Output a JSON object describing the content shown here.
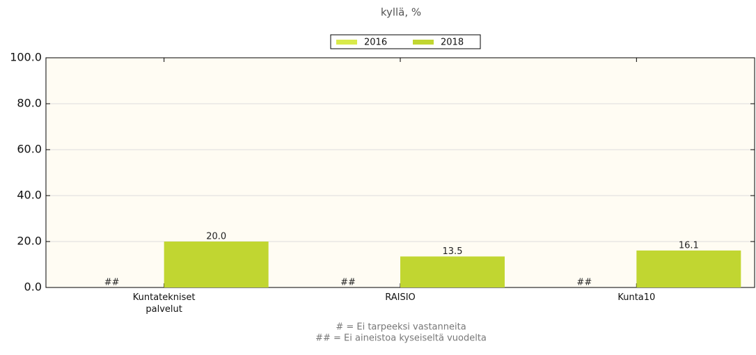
{
  "chart_data": {
    "type": "bar",
    "title": "kyllä, %",
    "categories": [
      "Kuntatekniset\npalvelut",
      "RAISIO",
      "Kunta10"
    ],
    "series": [
      {
        "name": "2016",
        "color": "#d9ea4a",
        "values": [
          null,
          null,
          null
        ],
        "value_labels": [
          "##",
          "##",
          "##"
        ]
      },
      {
        "name": "2018",
        "color": "#c1d631",
        "values": [
          20.0,
          13.5,
          16.1
        ],
        "value_labels": [
          "20.0",
          "13.5",
          "16.1"
        ]
      }
    ],
    "ylim": [
      0,
      100
    ],
    "yticks": [
      {
        "value": 0,
        "label": "0.0"
      },
      {
        "value": 20,
        "label": "20.0"
      },
      {
        "value": 40,
        "label": "40.0"
      },
      {
        "value": 60,
        "label": "60.0"
      },
      {
        "value": 80,
        "label": "80.0"
      },
      {
        "value": 100,
        "label": "100.0"
      }
    ],
    "grid": true,
    "legend": "top",
    "notes": [
      "# = Ei tarpeeksi vastanneita",
      "## = Ei aineistoa kyseiseltä vuodelta"
    ]
  }
}
